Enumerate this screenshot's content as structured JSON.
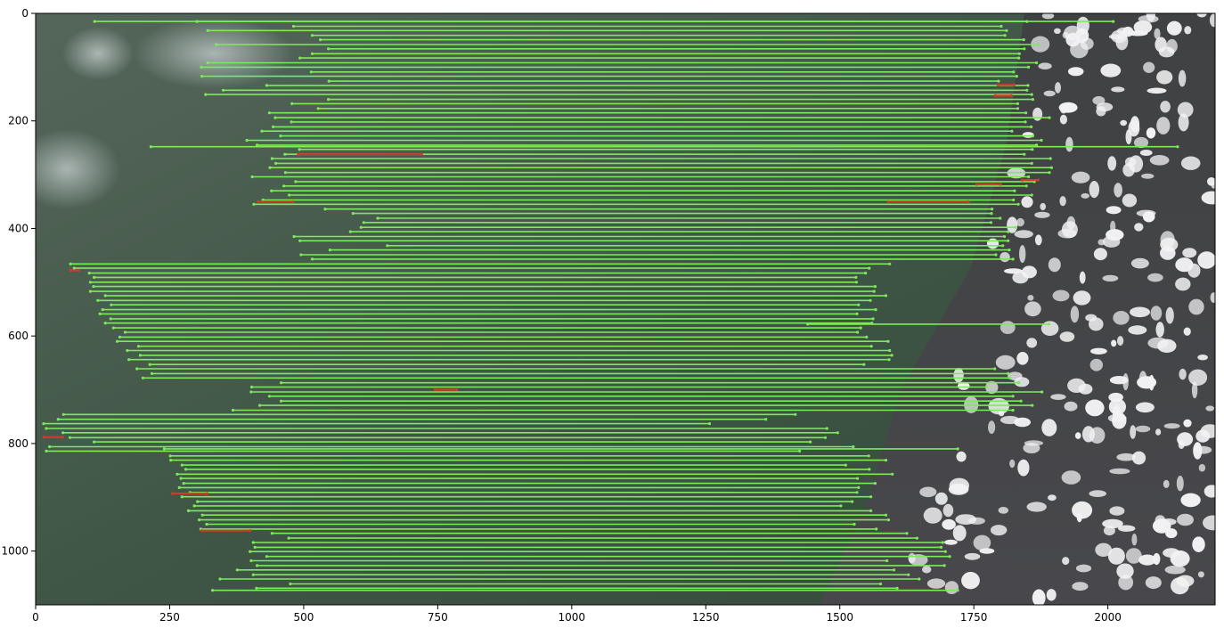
{
  "chart_data": {
    "type": "scatter",
    "title": "",
    "xlabel": "",
    "ylabel": "",
    "xlim": [
      0,
      2200
    ],
    "ylim": [
      1100,
      0
    ],
    "x_ticks": [
      0,
      250,
      500,
      750,
      1000,
      1250,
      1500,
      1750,
      2000
    ],
    "y_ticks": [
      0,
      200,
      400,
      600,
      800,
      1000
    ],
    "grid": false,
    "legend": "none",
    "background": "satellite image composite (left: vegetated terrain with haze, right: cloud-dotted fields)",
    "series": [
      {
        "color": "#7CEB5A",
        "kind": "match lines (inliers)",
        "segments": []
      },
      {
        "color": "#D23A2A",
        "kind": "match lines (outliers)",
        "segments": [
          [
            65,
            478,
            80,
            478
          ],
          [
            490,
            262,
            720,
            262
          ],
          [
            415,
            350,
            480,
            350
          ],
          [
            1590,
            350,
            1740,
            350
          ],
          [
            745,
            700,
            785,
            700
          ],
          [
            15,
            788,
            50,
            788
          ],
          [
            255,
            893,
            320,
            893
          ],
          [
            310,
            962,
            400,
            962
          ],
          [
            1795,
            133,
            1825,
            133
          ],
          [
            1790,
            153,
            1820,
            153
          ],
          [
            1840,
            310,
            1870,
            310
          ],
          [
            1755,
            318,
            1800,
            318
          ]
        ]
      }
    ]
  },
  "colors": {
    "inlier": "#7CEB5A",
    "outlier": "#D23A2A",
    "axis": "#000000"
  }
}
